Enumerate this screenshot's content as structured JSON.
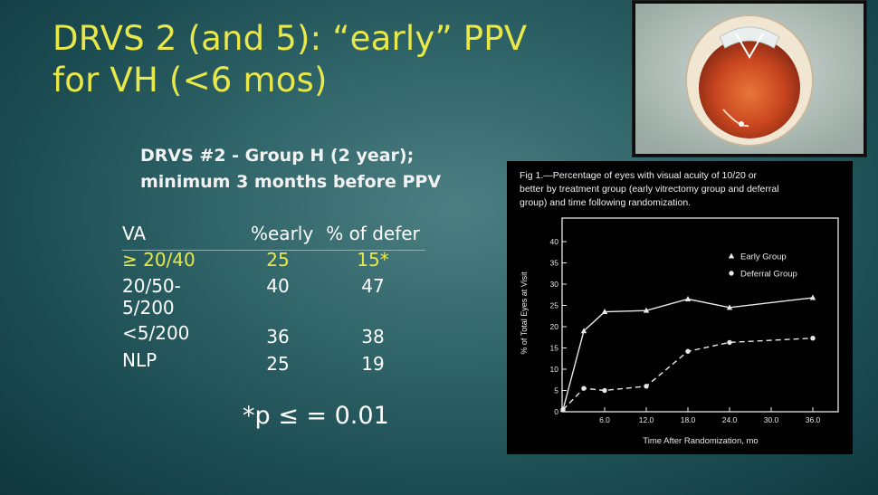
{
  "slide": {
    "title_line1": "DRVS 2 (and 5):  “early” PPV",
    "title_line2": "for VH (<6 mos)",
    "subtitle_line1": "DRVS #2 - Group H (2 year);",
    "subtitle_line2": "minimum 3 months before PPV",
    "footnote": "*p ≤ = 0.01"
  },
  "table": {
    "headers": [
      "VA",
      "%early",
      "% of defer"
    ],
    "rows": [
      {
        "va": "≥ 20/40",
        "early": "25",
        "defer": "15*",
        "highlight": true
      },
      {
        "va_line1": "20/50-",
        "va_line2": "5/200",
        "early": "40",
        "defer": "47"
      },
      {
        "va": "<5/200",
        "early": "36",
        "defer": "38"
      },
      {
        "va": "NLP",
        "early": "25",
        "defer": "19"
      }
    ]
  },
  "colors": {
    "title": "#e9e84a",
    "highlight": "#e9e84a",
    "text": "#ffffff"
  },
  "chart_data": {
    "type": "line",
    "caption_lines": [
      "Fig 1.—Percentage of eyes with visual acuity of 10/20 or",
      "better by treatment group (early vitrectomy group and deferral",
      "group) and time following randomization."
    ],
    "xlabel": "Time After Randomization, mo",
    "ylabel": "% of Total Eyes at Visit",
    "xlim": [
      0,
      36
    ],
    "ylim": [
      0,
      40
    ],
    "x_ticks": [
      "6.0",
      "12.0",
      "18.0",
      "24.0",
      "30.0",
      "36.0"
    ],
    "y_ticks": [
      "0",
      "5",
      "10",
      "15",
      "20",
      "25",
      "30",
      "35",
      "40"
    ],
    "legend_position": "top-right",
    "series": [
      {
        "name": "Early Group",
        "marker": "triangle",
        "line": "solid",
        "x": [
          0,
          3,
          6,
          12,
          18,
          24,
          36
        ],
        "y": [
          0.5,
          19,
          23.5,
          23.8,
          26.5,
          24.5,
          26.8
        ]
      },
      {
        "name": "Deferral Group",
        "marker": "circle",
        "line": "dashed",
        "x": [
          0,
          3,
          6,
          12,
          18,
          24,
          36
        ],
        "y": [
          0.5,
          5.5,
          5,
          6,
          14.2,
          16.3,
          17.3
        ]
      }
    ]
  }
}
